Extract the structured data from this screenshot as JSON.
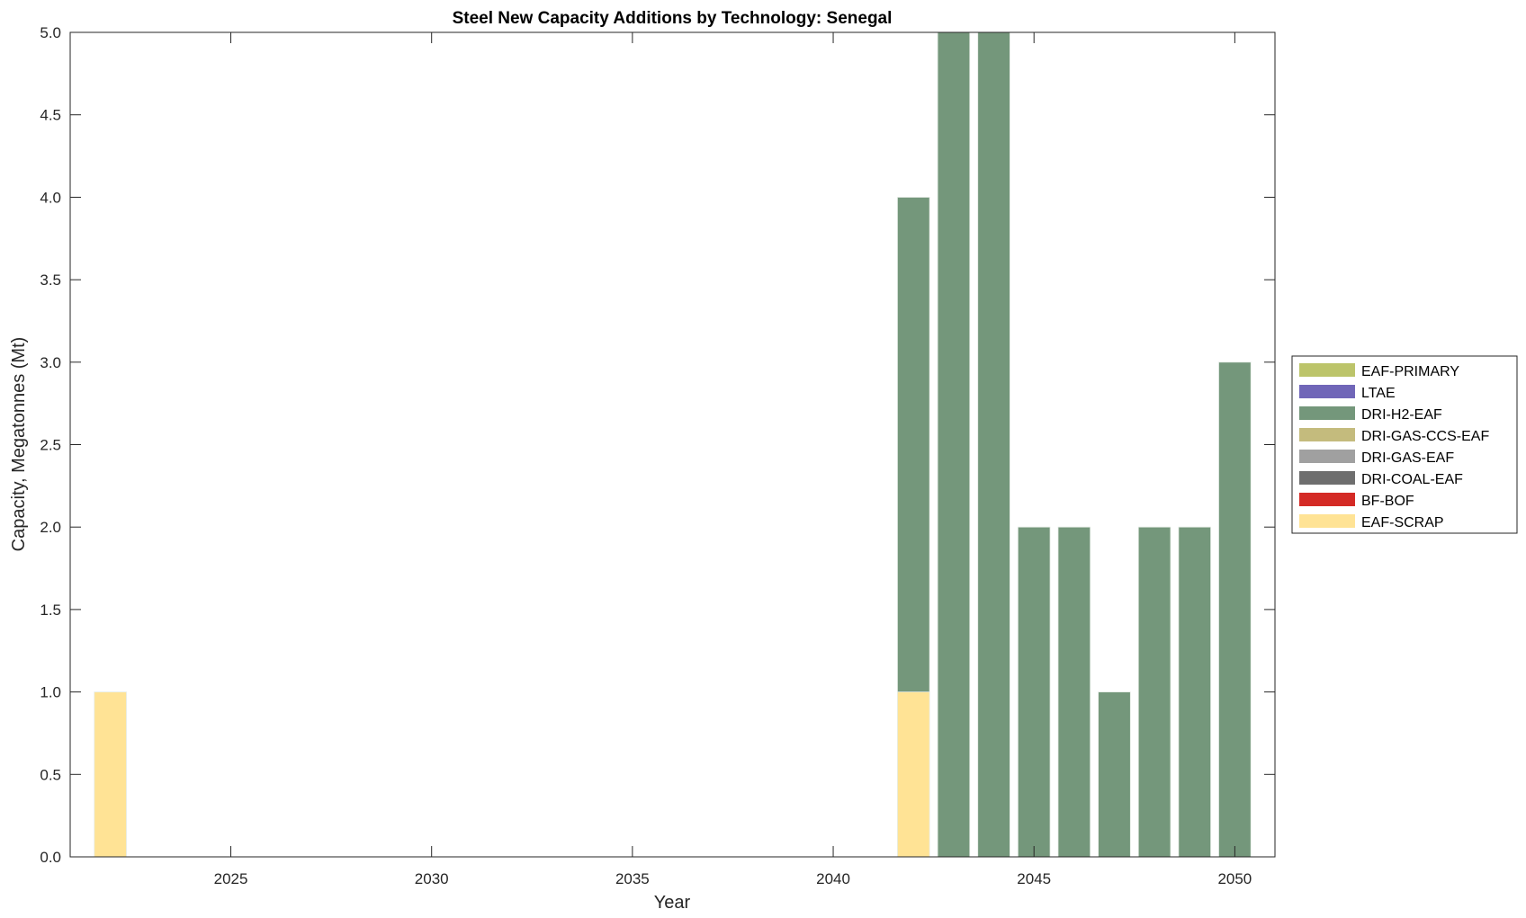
{
  "chart_data": {
    "type": "bar",
    "stacked": true,
    "title": "Steel New Capacity Additions by Technology: Senegal",
    "xlabel": "Year",
    "ylabel": "Capacity, Megatonnes (Mt)",
    "xlim": [
      2021,
      2051
    ],
    "ylim": [
      0,
      5
    ],
    "xticks": [
      2025,
      2030,
      2035,
      2040,
      2045,
      2050
    ],
    "yticks": [
      "0.0",
      "0.5",
      "1.0",
      "1.5",
      "2.0",
      "2.5",
      "3.0",
      "3.5",
      "4.0",
      "4.5",
      "5.0"
    ],
    "grid": false,
    "legend_position": "outside-right",
    "categories": [
      2022,
      2042,
      2043,
      2044,
      2045,
      2046,
      2047,
      2048,
      2049,
      2050
    ],
    "series": [
      {
        "name": "EAF-SCRAP",
        "color": "#FFE395",
        "values": [
          1,
          1,
          0,
          0,
          0,
          0,
          0,
          0,
          0,
          0
        ]
      },
      {
        "name": "BF-BOF",
        "color": "#D42A25",
        "values": [
          0,
          0,
          0,
          0,
          0,
          0,
          0,
          0,
          0,
          0
        ]
      },
      {
        "name": "DRI-COAL-EAF",
        "color": "#6E6E6E",
        "values": [
          0,
          0,
          0,
          0,
          0,
          0,
          0,
          0,
          0,
          0
        ]
      },
      {
        "name": "DRI-GAS-EAF",
        "color": "#A0A0A0",
        "values": [
          0,
          0,
          0,
          0,
          0,
          0,
          0,
          0,
          0,
          0
        ]
      },
      {
        "name": "DRI-GAS-CCS-EAF",
        "color": "#C4BB7D",
        "values": [
          0,
          0,
          0,
          0,
          0,
          0,
          0,
          0,
          0,
          0
        ]
      },
      {
        "name": "DRI-H2-EAF",
        "color": "#74977B",
        "values": [
          0,
          3,
          5,
          5,
          2,
          2,
          1,
          2,
          2,
          3
        ]
      },
      {
        "name": "LTAE",
        "color": "#7066B8",
        "values": [
          0,
          0,
          0,
          0,
          0,
          0,
          0,
          0,
          0,
          0
        ]
      },
      {
        "name": "EAF-PRIMARY",
        "color": "#BCC46A",
        "values": [
          0,
          0,
          0,
          0,
          0,
          0,
          0,
          0,
          0,
          0
        ]
      }
    ],
    "legend_order": [
      "EAF-PRIMARY",
      "LTAE",
      "DRI-H2-EAF",
      "DRI-GAS-CCS-EAF",
      "DRI-GAS-EAF",
      "DRI-COAL-EAF",
      "BF-BOF",
      "EAF-SCRAP"
    ]
  }
}
